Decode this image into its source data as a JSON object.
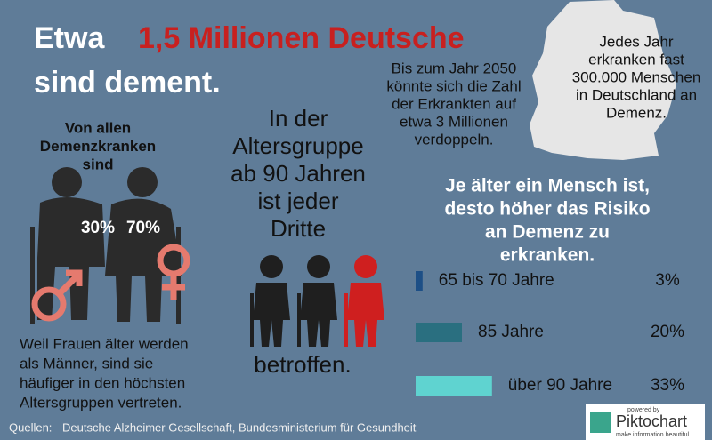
{
  "headline": {
    "lead": "Etwa",
    "highlight": "1,5 Millionen Deutsche",
    "tail": "sind dement."
  },
  "projection": [
    "Bis zum Jahr 2050",
    "könnte sich die Zahl",
    "der Erkrankten auf",
    "etwa 3 Millionen",
    "verdoppeln."
  ],
  "yearly": [
    "Jedes Jahr",
    "erkranken fast",
    "300.000 Menschen",
    "in Deutschland an",
    "Demenz."
  ],
  "gender": {
    "title": [
      "Von allen",
      "Demenzkranken",
      "sind"
    ],
    "men": "30%",
    "women": "70%",
    "note": [
      "Weil Frauen älter werden",
      "als Männer, sind sie",
      "häufiger in den höchsten",
      "Altersgruppen vertreten."
    ]
  },
  "age90": {
    "text": [
      "In der",
      "Altersgruppe",
      "ab 90 Jahren",
      "ist jeder",
      "Dritte"
    ],
    "footer": "betroffen."
  },
  "chart_data": {
    "type": "bar",
    "title": [
      "Je älter ein Mensch ist,",
      "desto höher das Risiko",
      "an Demenz zu",
      "erkranken."
    ],
    "categories": [
      "65 bis 70 Jahre",
      "85 Jahre",
      "über 90 Jahre"
    ],
    "values": [
      3,
      20,
      33
    ],
    "value_labels": [
      "3%",
      "20%",
      "33%"
    ],
    "colors": [
      "#1d4f86",
      "#2a6f80",
      "#5fd3d0"
    ]
  },
  "sources": {
    "label": "Quellen:",
    "text": "Deutsche Alzheimer Gesellschaft, Bundesministerium für Gesundheit"
  },
  "brand": {
    "top": "powered by",
    "name": "Piktochart",
    "tagline": "make information beautiful"
  }
}
